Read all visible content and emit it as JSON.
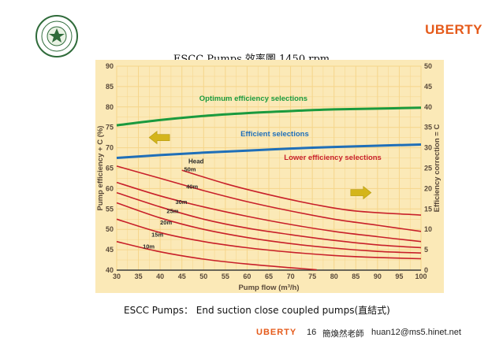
{
  "slide": {
    "brand": "UBERTY",
    "title": "ESCC Pumps 效率圖 1450 rpm",
    "caption": "ESCC Pumps： End suction close coupled pumps(直結式)",
    "footer": {
      "brand": "UBERTY",
      "page": "16",
      "author": "簡煥然老師",
      "email": "huan12@ms5.hinet.net"
    }
  },
  "chart_data": {
    "type": "line",
    "xlabel": "Pump flow (m³/h)",
    "ylabel_left": "Pump efficiency + C (%)",
    "ylabel_right": "Efficiency correction = C",
    "xlim": [
      30,
      100
    ],
    "ylim_left": [
      40,
      90
    ],
    "ylim_right": [
      0,
      50
    ],
    "xticks": [
      30,
      35,
      40,
      45,
      50,
      55,
      60,
      65,
      70,
      75,
      80,
      85,
      90,
      95,
      100
    ],
    "yticks_left": [
      40,
      45,
      50,
      55,
      60,
      65,
      70,
      75,
      80,
      85,
      90
    ],
    "yticks_right": [
      0,
      5,
      10,
      15,
      20,
      25,
      30,
      35,
      40,
      45,
      50
    ],
    "grid": true,
    "colors": {
      "background": "#fbe9b7",
      "grid": "#f5d58a",
      "green": "#1a9a3e",
      "blue": "#1f6fb8",
      "red": "#c8202a",
      "arrow": "#d4b51b",
      "axis_text": "#5a4a3a"
    },
    "boundaries": [
      {
        "label": "Optimum efficiency selections",
        "color": "#1a9a3e",
        "x": [
          30,
          40,
          50,
          60,
          70,
          80,
          90,
          100
        ],
        "y": [
          75.5,
          76.8,
          77.8,
          78.5,
          79.0,
          79.4,
          79.6,
          79.8
        ]
      },
      {
        "label": "Efficient selections",
        "color": "#1f6fb8",
        "x": [
          30,
          40,
          50,
          60,
          70,
          80,
          90,
          100
        ],
        "y": [
          67.5,
          68.2,
          68.8,
          69.3,
          69.8,
          70.2,
          70.5,
          70.8
        ]
      }
    ],
    "zone_labels": [
      {
        "text": "Lower efficiency selections",
        "color": "#c8202a",
        "x": 78,
        "y": 67
      }
    ],
    "curve_header": "Head",
    "series": [
      {
        "name": "50m",
        "x": [
          45,
          55,
          65,
          75,
          85,
          100
        ],
        "y": [
          64.5,
          61.2,
          58.5,
          56.2,
          54.5,
          53.5
        ],
        "label_at": [
          45.5,
          64.2
        ]
      },
      {
        "name": "40m",
        "x": [
          30,
          40,
          50,
          60,
          70,
          80,
          90,
          100
        ],
        "y": [
          65.5,
          62.5,
          59.5,
          56.8,
          54.5,
          52.5,
          51.0,
          49.5
        ],
        "label_at": [
          46,
          60
        ]
      },
      {
        "name": "30m",
        "x": [
          30,
          40,
          50,
          60,
          70,
          80,
          90,
          100
        ],
        "y": [
          61.5,
          58.2,
          55.5,
          53.2,
          51.2,
          49.5,
          48.2,
          47.0
        ],
        "label_at": [
          43.5,
          56.2
        ]
      },
      {
        "name": "25m",
        "x": [
          30,
          40,
          50,
          60,
          70,
          80,
          90,
          100
        ],
        "y": [
          59.0,
          55.5,
          52.5,
          50.3,
          48.7,
          47.3,
          46.2,
          45.5
        ],
        "label_at": [
          41.5,
          54
        ]
      },
      {
        "name": "20m",
        "x": [
          30,
          40,
          50,
          60,
          70,
          80,
          90,
          100
        ],
        "y": [
          56.5,
          52.8,
          50.0,
          48.0,
          46.5,
          45.4,
          44.6,
          44.2
        ],
        "label_at": [
          40,
          51.2
        ]
      },
      {
        "name": "15m",
        "x": [
          30,
          40,
          50,
          60,
          70,
          80,
          90,
          100
        ],
        "y": [
          52.5,
          49.2,
          47.0,
          45.5,
          44.4,
          43.6,
          43.1,
          42.8
        ],
        "label_at": [
          38,
          48.2
        ]
      },
      {
        "name": "10m",
        "x": [
          30,
          40,
          50,
          60,
          70,
          76
        ],
        "y": [
          47.0,
          44.5,
          42.7,
          41.5,
          40.6,
          40.1
        ],
        "label_at": [
          36,
          45.3
        ]
      }
    ],
    "arrows": [
      {
        "direction": "left",
        "x": 40,
        "y": 72.5
      },
      {
        "direction": "right",
        "x": 86,
        "y": 59
      }
    ]
  }
}
